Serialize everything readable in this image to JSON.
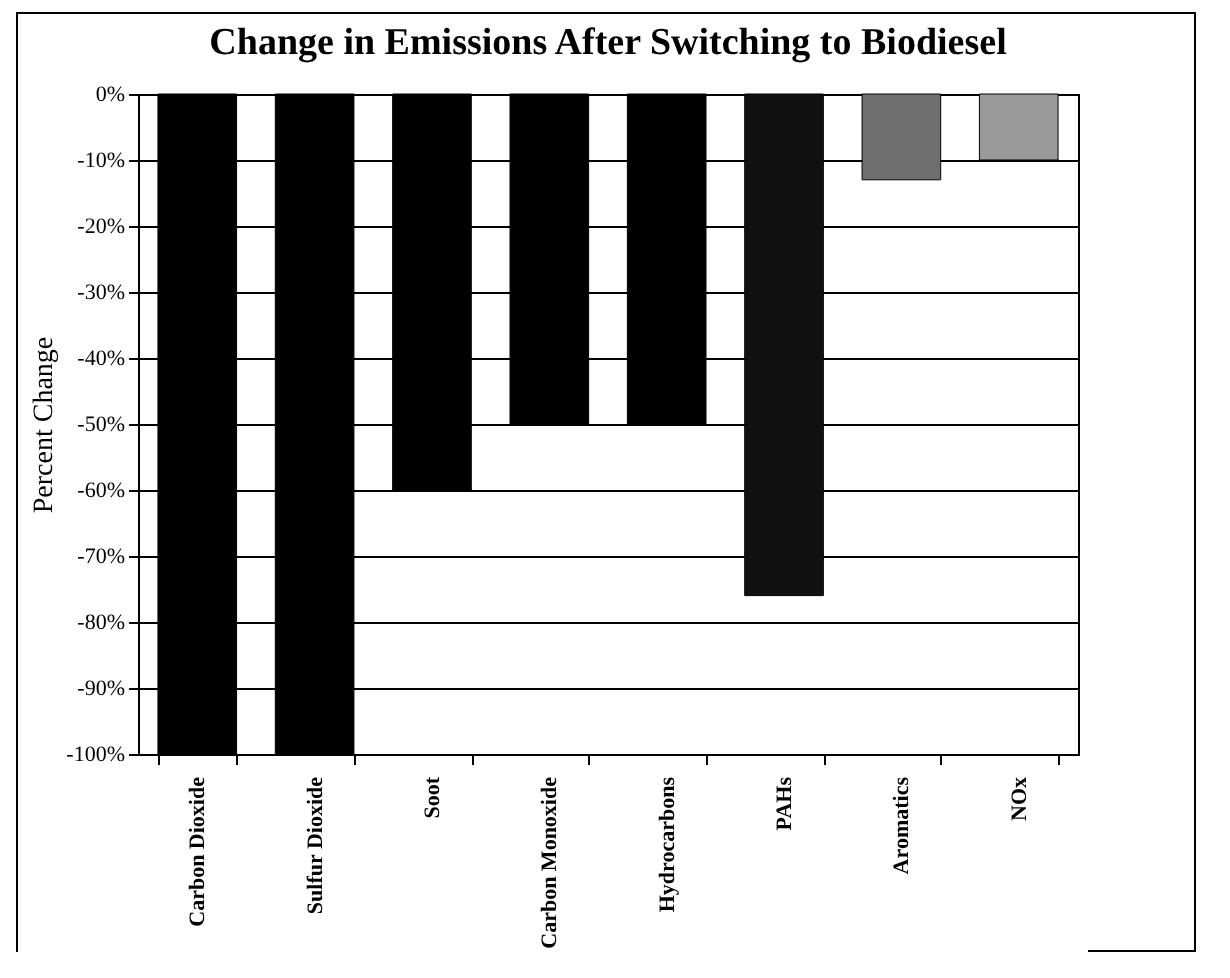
{
  "chart_data": {
    "type": "bar",
    "title": "Change in Emissions After Switching to Biodiesel",
    "ylabel": "Percent Change",
    "categories": [
      "Carbon Dioxide",
      "Sulfur Dioxide",
      "Soot",
      "Carbon Monoxide",
      "Hydrocarbons",
      "PAHs",
      "Aromatics",
      "NOx"
    ],
    "values": [
      -100,
      -100,
      -60,
      -50,
      -50,
      -76,
      -13,
      -10
    ],
    "colors": [
      "#000000",
      "#000000",
      "#000000",
      "#000000",
      "#000000",
      "#111111",
      "#6e6e6e",
      "#9a9a9a"
    ],
    "ylim": [
      -100,
      0
    ],
    "yticks": [
      {
        "value": 0,
        "label": "0%"
      },
      {
        "value": -10,
        "label": "-10%"
      },
      {
        "value": -20,
        "label": "-20%"
      },
      {
        "value": -30,
        "label": "-30%"
      },
      {
        "value": -40,
        "label": "-40%"
      },
      {
        "value": -50,
        "label": "-50%"
      },
      {
        "value": -60,
        "label": "-60%"
      },
      {
        "value": -70,
        "label": "-70%"
      },
      {
        "value": -80,
        "label": "-80%"
      },
      {
        "value": -90,
        "label": "-90%"
      },
      {
        "value": -100,
        "label": "-100%"
      }
    ],
    "grid": "y"
  }
}
